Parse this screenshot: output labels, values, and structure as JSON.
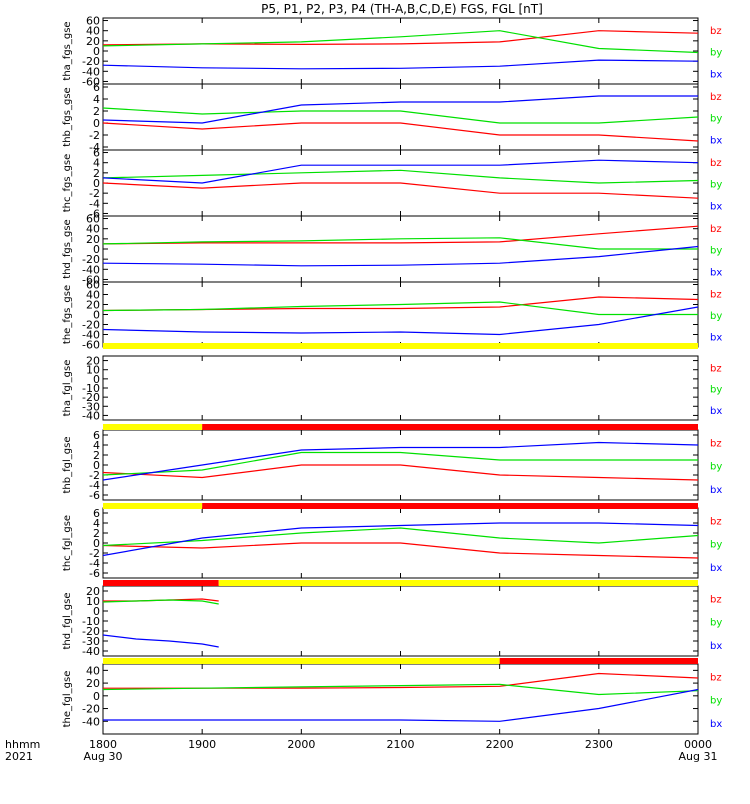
{
  "title": "P5, P1, P2, P3, P4 (TH-A,B,C,D,E) FGS, FGL [nT]",
  "time_axis": {
    "ticks": [
      "1800",
      "1900",
      "2000",
      "2100",
      "2200",
      "2300",
      "0000"
    ],
    "date_start": "Aug 30",
    "date_end": "Aug 31",
    "row_label": "hhmm",
    "year": "2021"
  },
  "legend_components": [
    "bz",
    "by",
    "bx"
  ],
  "colors": {
    "bz": "#ff0000",
    "by": "#00e000",
    "bx": "#0000ff",
    "flag_yellow": "#ffff00",
    "flag_red": "#ff0000"
  },
  "chart_data": [
    {
      "type": "line",
      "ylabel": "tha_fgs_gse",
      "ylim": [
        -65,
        65
      ],
      "yticks": [
        "60",
        "40",
        "20",
        "0",
        "-20",
        "-40",
        "-60"
      ],
      "series": [
        {
          "name": "bz",
          "x": [
            "1800",
            "1900",
            "2000",
            "2100",
            "2200",
            "2300",
            "0000"
          ],
          "values": [
            12,
            14,
            13,
            14,
            18,
            40,
            35
          ]
        },
        {
          "name": "by",
          "x": [
            "1800",
            "1900",
            "2000",
            "2100",
            "2200",
            "2300",
            "0000"
          ],
          "values": [
            10,
            14,
            18,
            28,
            40,
            5,
            -3
          ]
        },
        {
          "name": "bx",
          "x": [
            "1800",
            "1900",
            "2000",
            "2100",
            "2200",
            "2300",
            "0000"
          ],
          "values": [
            -28,
            -33,
            -35,
            -34,
            -30,
            -18,
            -20
          ]
        }
      ]
    },
    {
      "type": "line",
      "ylabel": "thb_fgs_gse",
      "ylim": [
        -4.5,
        6.5
      ],
      "yticks": [
        "6",
        "4",
        "2",
        "0",
        "-2",
        "-4"
      ],
      "series": [
        {
          "name": "bz",
          "x": [
            "1800",
            "1900",
            "2000",
            "2100",
            "2200",
            "2300",
            "0000"
          ],
          "values": [
            0,
            -1,
            0,
            0,
            -2,
            -2,
            -3
          ]
        },
        {
          "name": "by",
          "x": [
            "1800",
            "1900",
            "2000",
            "2100",
            "2200",
            "2300",
            "0000"
          ],
          "values": [
            2.5,
            1.5,
            2,
            2,
            0,
            0,
            1
          ]
        },
        {
          "name": "bx",
          "x": [
            "1800",
            "1900",
            "2000",
            "2100",
            "2200",
            "2300",
            "0000"
          ],
          "values": [
            0.5,
            0,
            3,
            3.5,
            3.5,
            4.5,
            4.5
          ]
        }
      ]
    },
    {
      "type": "line",
      "ylabel": "thc_fgs_gse",
      "ylim": [
        -6.5,
        6.5
      ],
      "yticks": [
        "6",
        "4",
        "2",
        "0",
        "-2",
        "-4",
        "-6"
      ],
      "series": [
        {
          "name": "bz",
          "x": [
            "1800",
            "1900",
            "2000",
            "2100",
            "2200",
            "2300",
            "0000"
          ],
          "values": [
            0,
            -1,
            0,
            0,
            -2,
            -2,
            -3
          ]
        },
        {
          "name": "by",
          "x": [
            "1800",
            "1900",
            "2000",
            "2100",
            "2200",
            "2300",
            "0000"
          ],
          "values": [
            1,
            1.5,
            2,
            2.5,
            1,
            0,
            0.5
          ]
        },
        {
          "name": "bx",
          "x": [
            "1800",
            "1900",
            "2000",
            "2100",
            "2200",
            "2300",
            "0000"
          ],
          "values": [
            1,
            0,
            3.5,
            3.5,
            3.5,
            4.5,
            4
          ]
        }
      ]
    },
    {
      "type": "line",
      "ylabel": "thd_fgs_gse",
      "ylim": [
        -65,
        65
      ],
      "yticks": [
        "60",
        "40",
        "20",
        "0",
        "-20",
        "-40",
        "-60"
      ],
      "series": [
        {
          "name": "bz",
          "x": [
            "1800",
            "1900",
            "2000",
            "2100",
            "2200",
            "2300",
            "0000"
          ],
          "values": [
            10,
            12,
            12,
            12,
            14,
            30,
            45
          ]
        },
        {
          "name": "by",
          "x": [
            "1800",
            "1900",
            "2000",
            "2100",
            "2200",
            "2300",
            "0000"
          ],
          "values": [
            10,
            14,
            16,
            20,
            22,
            0,
            0
          ]
        },
        {
          "name": "bx",
          "x": [
            "1800",
            "1900",
            "2000",
            "2100",
            "2200",
            "2300",
            "0000"
          ],
          "values": [
            -28,
            -30,
            -33,
            -32,
            -28,
            -15,
            5
          ]
        }
      ]
    },
    {
      "type": "line",
      "ylabel": "the_fgs_gse",
      "ylim": [
        -65,
        65
      ],
      "yticks": [
        "60",
        "40",
        "20",
        "0",
        "-20",
        "-40",
        "-60"
      ],
      "series": [
        {
          "name": "bz",
          "x": [
            "1800",
            "1900",
            "2000",
            "2100",
            "2200",
            "2300",
            "0000"
          ],
          "values": [
            8,
            10,
            12,
            12,
            15,
            35,
            30
          ]
        },
        {
          "name": "by",
          "x": [
            "1800",
            "1900",
            "2000",
            "2100",
            "2200",
            "2300",
            "0000"
          ],
          "values": [
            8,
            10,
            16,
            20,
            25,
            0,
            0
          ]
        },
        {
          "name": "bx",
          "x": [
            "1800",
            "1900",
            "2000",
            "2100",
            "2200",
            "2300",
            "0000"
          ],
          "values": [
            -30,
            -35,
            -37,
            -35,
            -40,
            -20,
            15
          ]
        }
      ]
    },
    {
      "type": "line",
      "ylabel": "tha_fgl_gse",
      "ylim": [
        -45,
        25
      ],
      "yticks": [
        "20",
        "10",
        "0",
        "-10",
        "-20",
        "-30",
        "-40"
      ],
      "series": []
    },
    {
      "type": "line",
      "ylabel": "thb_fgl_gse",
      "ylim": [
        -7,
        7
      ],
      "yticks": [
        "6",
        "4",
        "2",
        "0",
        "-2",
        "-4",
        "-6"
      ],
      "series": [
        {
          "name": "bz",
          "x": [
            "1800",
            "1900",
            "2000",
            "2100",
            "2200",
            "2300",
            "0000"
          ],
          "values": [
            -1.5,
            -2.5,
            0,
            0,
            -2,
            -2.5,
            -3
          ]
        },
        {
          "name": "by",
          "x": [
            "1800",
            "1900",
            "2000",
            "2100",
            "2200",
            "2300",
            "0000"
          ],
          "values": [
            -2,
            -1,
            2.5,
            2.5,
            1,
            1,
            1
          ]
        },
        {
          "name": "bx",
          "x": [
            "1800",
            "1900",
            "2000",
            "2100",
            "2200",
            "2300",
            "0000"
          ],
          "values": [
            -3,
            0,
            3,
            3.5,
            3.5,
            4.5,
            4
          ]
        }
      ]
    },
    {
      "type": "line",
      "ylabel": "thc_fgl_gse",
      "ylim": [
        -7,
        7
      ],
      "yticks": [
        "6",
        "4",
        "2",
        "0",
        "-2",
        "-4",
        "-6"
      ],
      "series": [
        {
          "name": "bz",
          "x": [
            "1800",
            "1900",
            "2000",
            "2100",
            "2200",
            "2300",
            "0000"
          ],
          "values": [
            -0.5,
            -1,
            0,
            0,
            -2,
            -2.5,
            -3
          ]
        },
        {
          "name": "by",
          "x": [
            "1800",
            "1900",
            "2000",
            "2100",
            "2200",
            "2300",
            "0000"
          ],
          "values": [
            -0.5,
            0.5,
            2,
            3,
            1,
            0,
            1.5
          ]
        },
        {
          "name": "bx",
          "x": [
            "1800",
            "1900",
            "2000",
            "2100",
            "2200",
            "2300",
            "0000"
          ],
          "values": [
            -2.5,
            1,
            3,
            3.5,
            4,
            4,
            3.5
          ]
        }
      ]
    },
    {
      "type": "line",
      "ylabel": "thd_fgl_gse",
      "ylim": [
        -45,
        25
      ],
      "yticks": [
        "20",
        "10",
        "0",
        "-10",
        "-20",
        "-30",
        "-40"
      ],
      "series": [
        {
          "name": "bz",
          "x": [
            "1800",
            "1820",
            "1840",
            "1860",
            "1870"
          ],
          "values": [
            10,
            10,
            11,
            12,
            10
          ]
        },
        {
          "name": "by",
          "x": [
            "1800",
            "1820",
            "1840",
            "1860",
            "1870"
          ],
          "values": [
            9,
            10,
            11,
            10,
            7
          ]
        },
        {
          "name": "bx",
          "x": [
            "1800",
            "1820",
            "1840",
            "1860",
            "1870"
          ],
          "values": [
            -24,
            -28,
            -30,
            -33,
            -36
          ]
        }
      ]
    },
    {
      "type": "line",
      "ylabel": "the_fgl_gse",
      "ylim": [
        -60,
        50
      ],
      "yticks": [
        "40",
        "20",
        "0",
        "-20",
        "-40"
      ],
      "series": [
        {
          "name": "bz",
          "x": [
            "1800",
            "1900",
            "2000",
            "2100",
            "2200",
            "2300",
            "0000"
          ],
          "values": [
            12,
            12,
            12,
            13,
            15,
            35,
            28
          ]
        },
        {
          "name": "by",
          "x": [
            "1800",
            "1900",
            "2000",
            "2100",
            "2200",
            "2300",
            "0000"
          ],
          "values": [
            10,
            12,
            14,
            16,
            18,
            2,
            8
          ]
        },
        {
          "name": "bx",
          "x": [
            "1800",
            "1900",
            "2000",
            "2100",
            "2200",
            "2300",
            "0000"
          ],
          "values": [
            -38,
            -38,
            -38,
            -38,
            -40,
            -20,
            10
          ]
        }
      ]
    }
  ],
  "flag_bars": [
    {
      "segments": [
        {
          "from": "1800",
          "to": "0000",
          "color": "yellow"
        }
      ]
    },
    {
      "segments": [
        {
          "from": "1800",
          "to": "1900",
          "color": "yellow"
        },
        {
          "from": "1900",
          "to": "0000",
          "color": "red"
        }
      ]
    },
    {
      "segments": [
        {
          "from": "1800",
          "to": "1900",
          "color": "yellow"
        },
        {
          "from": "1900",
          "to": "0000",
          "color": "red"
        }
      ]
    },
    {
      "segments": [
        {
          "from": "1800",
          "to": "1870",
          "color": "red"
        },
        {
          "from": "1870",
          "to": "0000",
          "color": "yellow"
        }
      ]
    },
    {
      "segments": [
        {
          "from": "1800",
          "to": "2200",
          "color": "yellow"
        },
        {
          "from": "2200",
          "to": "0000",
          "color": "red"
        }
      ]
    }
  ]
}
